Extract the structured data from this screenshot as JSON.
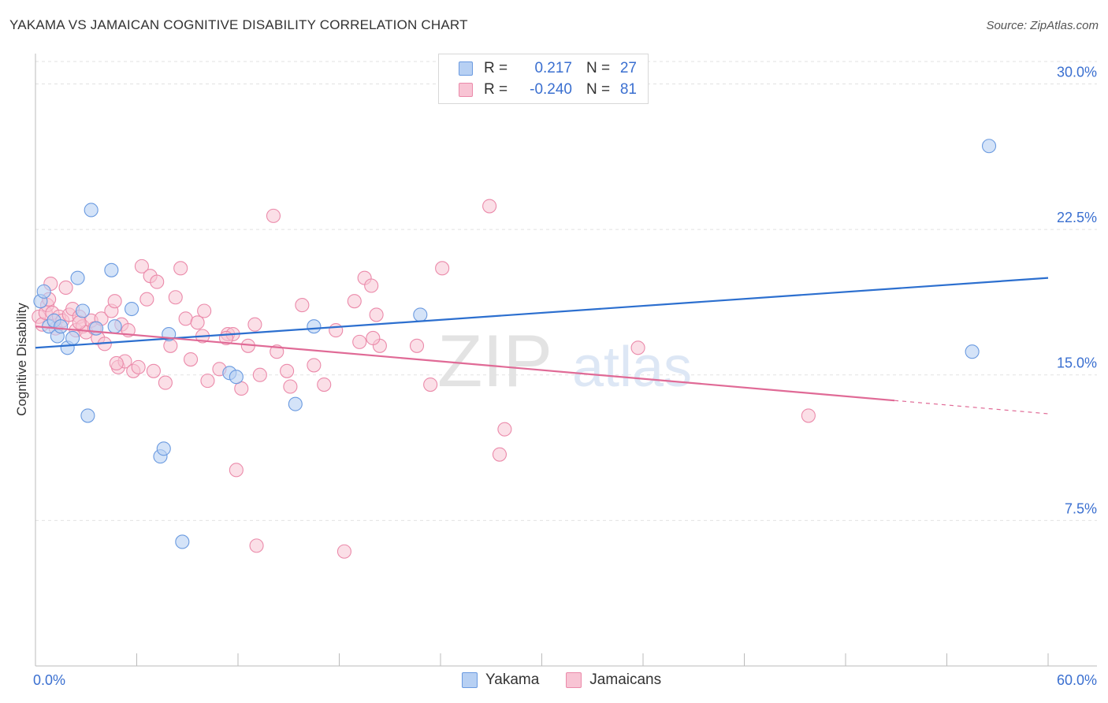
{
  "title": "YAKAMA VS JAMAICAN COGNITIVE DISABILITY CORRELATION CHART",
  "source": "Source: ZipAtlas.com",
  "watermark": {
    "zip": "ZIP",
    "atlas": "atlas"
  },
  "legend": {
    "rows": [
      {
        "r_label": "R =",
        "r_value": "0.217",
        "n_label": "N =",
        "n_value": "27"
      },
      {
        "r_label": "R =",
        "r_value": "-0.240",
        "n_label": "N =",
        "n_value": "81"
      }
    ]
  },
  "bottom_legend": {
    "yakama": "Yakama",
    "jamaicans": "Jamaicans"
  },
  "colors": {
    "yakama_fill": "#b7d0f3",
    "yakama_stroke": "#6a9ae0",
    "yakama_line": "#2c6fcf",
    "jamaican_fill": "#f8c4d4",
    "jamaican_stroke": "#eb8aaa",
    "jamaican_line": "#e06a96",
    "tick_label": "#3a6fd0"
  },
  "chart_data": {
    "type": "scatter",
    "title": "YAKAMA VS JAMAICAN COGNITIVE DISABILITY CORRELATION CHART",
    "xlabel": "",
    "ylabel": "Cognitive Disability",
    "xlim": [
      0,
      60
    ],
    "ylim": [
      0,
      31.4
    ],
    "x_tick_labels": [
      "0.0%",
      "60.0%"
    ],
    "y_ticks": [
      {
        "value": 7.5,
        "label": "7.5%"
      },
      {
        "value": 15.0,
        "label": "15.0%"
      },
      {
        "value": 22.5,
        "label": "22.5%"
      },
      {
        "value": 30.0,
        "label": "30.0%"
      }
    ],
    "grid": "horizontal dashed",
    "legend_position": "top-center",
    "series": [
      {
        "name": "Yakama",
        "points": [
          [
            0.3,
            18.8
          ],
          [
            0.5,
            19.3
          ],
          [
            0.8,
            17.5
          ],
          [
            1.1,
            17.8
          ],
          [
            1.3,
            17.0
          ],
          [
            1.5,
            17.5
          ],
          [
            1.9,
            16.4
          ],
          [
            2.2,
            16.9
          ],
          [
            2.5,
            20.0
          ],
          [
            2.8,
            18.3
          ],
          [
            3.1,
            12.9
          ],
          [
            3.3,
            23.5
          ],
          [
            3.6,
            17.4
          ],
          [
            4.5,
            20.4
          ],
          [
            4.7,
            17.5
          ],
          [
            5.7,
            18.4
          ],
          [
            7.4,
            10.8
          ],
          [
            7.6,
            11.2
          ],
          [
            7.9,
            17.1
          ],
          [
            8.7,
            6.4
          ],
          [
            11.5,
            15.1
          ],
          [
            11.9,
            14.9
          ],
          [
            15.4,
            13.5
          ],
          [
            16.5,
            17.5
          ],
          [
            22.8,
            18.1
          ],
          [
            55.5,
            16.2
          ],
          [
            56.5,
            26.8
          ]
        ],
        "trend": {
          "x": [
            0,
            60
          ],
          "y": [
            16.4,
            20.0
          ]
        }
      },
      {
        "name": "Jamaicans",
        "points": [
          [
            0.2,
            18.0
          ],
          [
            0.4,
            17.6
          ],
          [
            0.6,
            18.2
          ],
          [
            0.7,
            18.6
          ],
          [
            0.9,
            19.7
          ],
          [
            1.0,
            18.2
          ],
          [
            1.2,
            17.4
          ],
          [
            1.4,
            18.0
          ],
          [
            1.6,
            17.8
          ],
          [
            1.8,
            19.5
          ],
          [
            2.0,
            18.1
          ],
          [
            2.2,
            18.4
          ],
          [
            2.4,
            17.3
          ],
          [
            2.6,
            18.0
          ],
          [
            2.8,
            17.5
          ],
          [
            3.0,
            17.2
          ],
          [
            3.3,
            17.8
          ],
          [
            3.5,
            17.4
          ],
          [
            3.7,
            16.9
          ],
          [
            3.9,
            17.9
          ],
          [
            4.1,
            16.6
          ],
          [
            4.5,
            18.3
          ],
          [
            4.7,
            18.8
          ],
          [
            4.9,
            15.4
          ],
          [
            5.1,
            17.6
          ],
          [
            5.3,
            15.7
          ],
          [
            5.5,
            17.3
          ],
          [
            5.8,
            15.2
          ],
          [
            6.1,
            15.4
          ],
          [
            6.3,
            20.6
          ],
          [
            6.6,
            18.9
          ],
          [
            6.8,
            20.1
          ],
          [
            7.0,
            15.2
          ],
          [
            7.2,
            19.8
          ],
          [
            7.7,
            14.6
          ],
          [
            8.0,
            16.5
          ],
          [
            8.3,
            19.0
          ],
          [
            8.6,
            20.5
          ],
          [
            8.9,
            17.9
          ],
          [
            9.2,
            15.8
          ],
          [
            9.6,
            17.7
          ],
          [
            10.0,
            18.3
          ],
          [
            10.2,
            14.7
          ],
          [
            10.9,
            15.3
          ],
          [
            11.4,
            17.1
          ],
          [
            11.7,
            17.1
          ],
          [
            11.9,
            10.1
          ],
          [
            12.2,
            14.3
          ],
          [
            12.6,
            16.5
          ],
          [
            13.0,
            17.6
          ],
          [
            13.1,
            6.2
          ],
          [
            13.3,
            15.0
          ],
          [
            14.1,
            23.2
          ],
          [
            14.3,
            16.2
          ],
          [
            14.9,
            15.2
          ],
          [
            15.1,
            14.4
          ],
          [
            15.8,
            18.6
          ],
          [
            16.5,
            15.5
          ],
          [
            17.1,
            14.5
          ],
          [
            17.8,
            17.3
          ],
          [
            18.3,
            5.9
          ],
          [
            18.9,
            18.8
          ],
          [
            19.2,
            16.7
          ],
          [
            19.5,
            20.0
          ],
          [
            19.9,
            19.6
          ],
          [
            20.2,
            18.1
          ],
          [
            20.4,
            16.5
          ],
          [
            22.6,
            16.5
          ],
          [
            23.4,
            14.5
          ],
          [
            24.1,
            20.5
          ],
          [
            26.9,
            23.7
          ],
          [
            27.5,
            10.9
          ],
          [
            27.8,
            12.2
          ],
          [
            35.7,
            16.4
          ],
          [
            45.8,
            12.9
          ],
          [
            0.8,
            18.9
          ],
          [
            2.6,
            17.7
          ],
          [
            9.9,
            17.0
          ],
          [
            11.3,
            16.9
          ],
          [
            4.8,
            15.6
          ],
          [
            20.0,
            16.9
          ]
        ],
        "trend": {
          "x": [
            0,
            60
          ],
          "y": [
            17.5,
            13.0
          ],
          "solid_until_x": 50.9
        }
      }
    ]
  }
}
